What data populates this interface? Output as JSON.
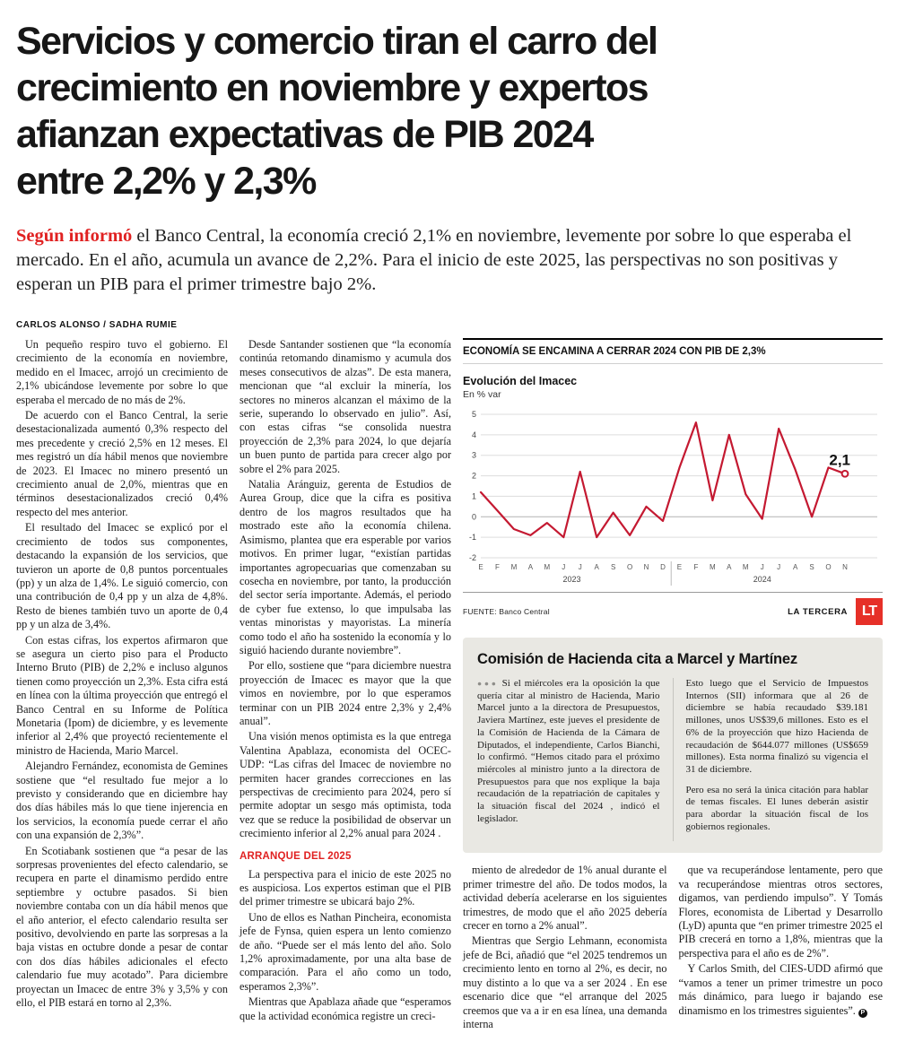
{
  "headline_lines": [
    "Servicios y comercio tiran el carro del",
    "crecimiento en noviembre y expertos",
    "afianzan expectativas de PIB 2024",
    "entre 2,2% y 2,3%"
  ],
  "lede": {
    "lead_in": "Según informó",
    "text": " el Banco Central, la economía creció 2,1% en noviembre, levemente por sobre lo que esperaba el mercado. En el año, acumula un avance de 2,2%. Para el inicio de este 2025, las perspectivas no son positivas y esperan un PIB para el primer trimestre bajo 2%."
  },
  "byline": "CARLOS ALONSO / SADHA RUMIE",
  "article": {
    "col1": [
      "Un pequeño respiro tuvo el gobierno. El crecimiento de la economía en noviembre, medido en el Imacec, arrojó un crecimiento de 2,1% ubicándose levemente por sobre lo que esperaba el mercado de no más de 2%.",
      "De acuerdo con el Banco Central, la serie desestacionalizada aumentó 0,3% respecto del mes precedente y creció 2,5% en 12 meses. El mes registró un día hábil menos que noviembre de 2023. El Imacec no minero presentó un crecimiento anual de 2,0%, mientras que en términos desestacionalizados creció 0,4% respecto del mes anterior.",
      "El resultado del Imacec se explicó por el crecimiento de todos sus componentes, destacando la expansión de los servicios, que tuvieron un aporte de 0,8 puntos porcentuales (pp) y un alza de 1,4%. Le siguió comercio, con una contribución de 0,4 pp y un alza de 4,8%. Resto de bienes también tuvo un aporte de 0,4 pp y un alza de 3,4%.",
      "Con estas cifras, los expertos afirmaron que se asegura un cierto piso para el Producto Interno Bruto (PIB) de 2,2% e incluso algunos tienen como proyección un 2,3%. Esta cifra está en línea con la última proyección que entregó el Banco Central en su Informe de Política Monetaria (Ipom) de diciembre, y es levemente inferior al 2,4% que proyectó recientemente el ministro de Hacienda, Mario Marcel.",
      "Alejandro Fernández, economista de Gemines sostiene que “el resultado fue mejor a lo previsto y considerando que en diciembre hay dos días hábiles más lo que tiene injerencia en los servicios, la economía puede cerrar el año con una expansión de 2,3%”.",
      "En Scotiabank sostienen que “a pesar de las sorpresas provenientes del efecto calendario, se recupera en parte el dinamismo perdido entre septiembre y octubre pasados. Si bien noviembre contaba con un día hábil menos que el año anterior, el efecto calendario resulta ser positivo, devolviendo en parte las sorpresas a la baja vistas en octubre donde a pesar de contar con dos días hábiles adicionales el efecto calendario fue muy acotado”. Para diciembre proyectan un Imacec de entre 3% y 3,5% y con ello, el PIB estará en torno al 2,3%."
    ],
    "col2": [
      "Desde Santander sostienen que “la economía continúa retomando dinamismo y acumula dos meses consecutivos de alzas”. De esta manera, mencionan que “al excluir la minería, los sectores no mineros alcanzan el máximo de la serie, superando lo observado en julio”. Así, con estas cifras “se consolida nuestra proyección de 2,3% para 2024, lo que dejaría un buen punto de partida para crecer algo por sobre el 2% para 2025.",
      "Natalia Aránguiz, gerenta de Estudios de Aurea Group, dice que la cifra es positiva dentro de los magros resultados que ha mostrado este año la economía chilena. Asimismo, plantea que era esperable por varios motivos. En primer lugar, “existían partidas importantes agropecuarias que comenzaban su cosecha en noviembre, por tanto, la producción del sector sería importante. Además, el periodo de cyber fue extenso, lo que impulsaba las ventas minoristas y mayoristas. La minería como todo el año ha sostenido la economía y lo siguió haciendo durante noviembre”.",
      "Por ello, sostiene que “para diciembre nuestra proyección de Imacec es mayor que la que vimos en noviembre, por lo que esperamos terminar con un PIB 2024 entre 2,3% y 2,4% anual”.",
      "Una visión menos optimista es la que entrega Valentina Apablaza, economista del OCEC-UDP: “Las cifras del Imacec de noviembre no permiten hacer grandes correcciones en las perspectivas de crecimiento para 2024, pero sí permite adoptar un sesgo más optimista, toda vez que se reduce la posibilidad de observar un crecimiento inferior al 2,2% anual para 2024 ."
    ],
    "section_header": "ARRANQUE DEL 2025",
    "col2b": [
      "La perspectiva para el inicio de este 2025 no es auspiciosa. Los expertos estiman que el PIB del primer trimestre se ubicará bajo 2%.",
      "Uno de ellos es Nathan Pincheira, economista jefe de Fynsa, quien espera un lento comienzo de año. “Puede ser el más lento del año. Solo 1,2% aproximadamente, por una alta base de comparación. Para el año como un todo, esperamos 2,3%”.",
      "Mientras que Apablaza añade que “esperamos que la actividad económica registre un creci-"
    ],
    "col3": [
      "miento de alrededor de 1% anual durante el primer trimestre del año. De todos modos, la actividad debería acelerarse en los siguientes trimestres, de modo que el año 2025 debería crecer en torno a 2% anual”.",
      "Mientras que Sergio Lehmann, economista jefe de Bci, añadió que “el 2025 tendremos un crecimiento lento en torno al 2%, es decir, no muy distinto a lo que va a ser 2024 . En ese escenario dice que “el arranque del 2025 creemos que va a ir en esa línea, una demanda interna"
    ],
    "col4": [
      "que va recuperándose lentamente, pero que va recuperándose mientras otros sectores, digamos, van perdiendo impulso”. Y Tomás Flores, economista de Libertad y Desarrollo (LyD) apunta que “en primer trimestre 2025 el PIB crecerá en torno a 1,8%, mientras que la perspectiva para el año es de 2%”.",
      "Y Carlos Smith, del CIES-UDD afirmó que “vamos a tener un primer trimestre un poco más dinámico, para luego ir bajando ese dinamismo en los trimestres siguientes”."
    ],
    "end_mark": "P"
  },
  "chart": {
    "header": "ECONOMÍA SE ENCAMINA A CERRAR 2024 CON PIB DE 2,3%",
    "credit": "LA TERCERA",
    "logo": "LT"
  },
  "chart_data": {
    "type": "line",
    "title": "Evolución del Imacec",
    "subtitle": "En % var",
    "x_labels": [
      "E",
      "F",
      "M",
      "A",
      "M",
      "J",
      "J",
      "A",
      "S",
      "O",
      "N",
      "D",
      "E",
      "F",
      "M",
      "A",
      "M",
      "J",
      "J",
      "A",
      "S",
      "O",
      "N"
    ],
    "year_groups": [
      {
        "label": "2023",
        "span": 12
      },
      {
        "label": "2024",
        "span": 11
      }
    ],
    "values": [
      1.2,
      0.3,
      -0.6,
      -0.9,
      -0.3,
      -1.0,
      2.2,
      -1.0,
      0.2,
      -0.9,
      0.5,
      -0.2,
      2.4,
      4.6,
      0.8,
      4.0,
      1.1,
      -0.1,
      4.3,
      2.3,
      0.0,
      2.4,
      2.1
    ],
    "ylim": [
      -2,
      5
    ],
    "yticks": [
      5,
      4,
      3,
      2,
      1,
      0,
      -1,
      -2
    ],
    "end_label": "2,1",
    "line_color": "#c41931",
    "source": "FUENTE: Banco Central"
  },
  "note_box": {
    "title": "Comisión de Hacienda cita a Marcel y Martínez",
    "bullets": "●●●",
    "col1": [
      "Si el miércoles era la oposición la que quería citar al ministro de Hacienda, Mario Marcel junto a la directora de Presupuestos, Javiera Martínez, este jueves el presidente de la Comisión de Hacienda de la Cámara de Diputados, el independiente, Carlos Bianchi, lo confirmó. “Hemos citado para el próximo miércoles al ministro junto a la directora de Presupuestos para que nos explique la baja recaudación de la repatriación de capitales y la situación fiscal del 2024 , indicó el legislador."
    ],
    "col2": [
      "Esto luego que el Servicio de Impuestos Internos (SII) informara que al 26 de diciembre se había recaudado $39.181 millones, unos US$39,6 millones. Esto es el 6% de la proyección que hizo Hacienda de recaudación de $644.077 millones (US$659 millones). Esta norma finalizó su vigencia el 31 de diciembre.",
      "Pero esa no será la única citación para hablar de temas fiscales. El lunes deberán asistir para abordar la situación fiscal de los gobiernos regionales."
    ]
  }
}
